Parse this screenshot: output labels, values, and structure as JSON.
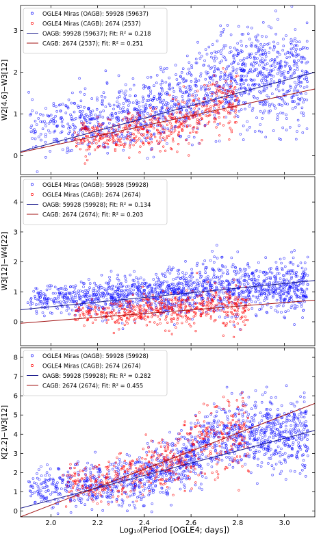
{
  "figure": {
    "xlabel": "Log₁₀(Period [OGLE4; days])",
    "colors": {
      "oagb": "#0000ff",
      "cagb": "#ff0000",
      "oagb_fit": "#1a1a8c",
      "cagb_fit": "#a01010"
    }
  },
  "chart_data": [
    {
      "type": "scatter",
      "xlim": [
        1.87,
        3.13
      ],
      "ylim": [
        -0.45,
        3.6
      ],
      "ylabel": "W2[4.6]−W3[12]",
      "x_ticks": [
        "2.0",
        "2.2",
        "2.4",
        "2.6",
        "2.8",
        "3.0"
      ],
      "y_ticks": [
        "0",
        "1",
        "2",
        "3"
      ],
      "grid": false,
      "legend_position": "top-left",
      "legend": [
        "OGLE4 Miras (OAGB): 59928 (59637)",
        "OGLE4 Miras (CAGB): 2674 (2537)",
        "OAGB: 59928 (59637); Fit: R² = 0.218",
        "CAGB: 2674 (2537); Fit: R² = 0.251"
      ],
      "series": [
        {
          "name": "OGLE4 Miras (OAGB)",
          "count": 59928,
          "count_fit": 59637,
          "x_range": [
            1.9,
            3.1
          ],
          "center": [
            [
              2.0,
              0.7
            ],
            [
              2.2,
              0.8
            ],
            [
              2.4,
              0.95
            ],
            [
              2.55,
              1.2
            ],
            [
              2.65,
              1.6
            ],
            [
              2.75,
              1.9
            ]
          ],
          "spread": 0.5
        },
        {
          "name": "OGLE4 Miras (CAGB)",
          "count": 2674,
          "count_fit": 2537,
          "x_range": [
            2.1,
            2.8
          ],
          "center": [
            [
              2.2,
              0.45
            ],
            [
              2.4,
              0.6
            ],
            [
              2.55,
              0.8
            ],
            [
              2.7,
              1.2
            ]
          ],
          "spread": 0.3
        }
      ],
      "fits": [
        {
          "name": "OAGB",
          "r2": 0.218,
          "x": [
            1.87,
            3.13
          ],
          "y": [
            0.1,
            2.0
          ]
        },
        {
          "name": "CAGB",
          "r2": 0.251,
          "x": [
            1.87,
            3.13
          ],
          "y": [
            0.08,
            1.6
          ]
        }
      ]
    },
    {
      "type": "scatter",
      "xlim": [
        1.87,
        3.13
      ],
      "ylim": [
        -0.8,
        4.85
      ],
      "ylabel": "W3[12]−W4[22]",
      "x_ticks": [
        "2.0",
        "2.2",
        "2.4",
        "2.6",
        "2.8",
        "3.0"
      ],
      "y_ticks": [
        "0",
        "1",
        "2",
        "3",
        "4"
      ],
      "grid": false,
      "legend_position": "top-left",
      "legend": [
        "OGLE4 Miras (OAGB): 59928 (59928)",
        "OGLE4 Miras (CAGB): 2674 (2674)",
        "OAGB: 59928 (59928); Fit: R² = 0.134",
        "CAGB: 2674 (2674); Fit: R² = 0.203"
      ],
      "series": [
        {
          "name": "OGLE4 Miras (OAGB)",
          "count": 59928,
          "count_fit": 59928,
          "x_range": [
            1.9,
            3.1
          ],
          "center": [
            [
              2.0,
              0.75
            ],
            [
              2.3,
              0.85
            ],
            [
              2.6,
              1.05
            ],
            [
              2.75,
              1.15
            ]
          ],
          "spread": 0.4
        },
        {
          "name": "OGLE4 Miras (CAGB)",
          "count": 2674,
          "count_fit": 2674,
          "x_range": [
            2.1,
            2.85
          ],
          "center": [
            [
              2.2,
              0.3
            ],
            [
              2.5,
              0.35
            ],
            [
              2.7,
              0.55
            ]
          ],
          "spread": 0.3
        }
      ],
      "fits": [
        {
          "name": "OAGB",
          "r2": 0.134,
          "x": [
            1.87,
            3.13
          ],
          "y": [
            0.4,
            1.38
          ]
        },
        {
          "name": "CAGB",
          "r2": 0.203,
          "x": [
            1.87,
            3.13
          ],
          "y": [
            -0.05,
            0.72
          ]
        }
      ]
    },
    {
      "type": "scatter",
      "xlim": [
        1.87,
        3.13
      ],
      "ylim": [
        -0.3,
        8.5
      ],
      "ylabel": "K[2.2]−W3[12]",
      "x_ticks": [
        "2.0",
        "2.2",
        "2.4",
        "2.6",
        "2.8",
        "3.0"
      ],
      "y_ticks": [
        "0",
        "1",
        "2",
        "3",
        "4",
        "5",
        "6",
        "7",
        "8"
      ],
      "grid": false,
      "legend_position": "top-left",
      "legend": [
        "OGLE4 Miras (OAGB): 59928 (59928)",
        "OGLE4 Miras (CAGB): 2674 (2674)",
        "OAGB: 59928 (59928); Fit: R² = 0.282",
        "CAGB: 2674 (2674); Fit: R² = 0.455"
      ],
      "series": [
        {
          "name": "OGLE4 Miras (OAGB)",
          "count": 59928,
          "count_fit": 59928,
          "x_range": [
            1.9,
            3.1
          ],
          "center": [
            [
              2.0,
              1.2
            ],
            [
              2.2,
              1.4
            ],
            [
              2.4,
              1.7
            ],
            [
              2.55,
              2.4
            ],
            [
              2.65,
              3.3
            ],
            [
              2.75,
              4.0
            ]
          ],
          "spread": 0.8
        },
        {
          "name": "OGLE4 Miras (CAGB)",
          "count": 2674,
          "count_fit": 2674,
          "x_range": [
            2.05,
            2.85
          ],
          "center": [
            [
              2.2,
              1.5
            ],
            [
              2.4,
              2.0
            ],
            [
              2.55,
              2.8
            ],
            [
              2.7,
              3.8
            ]
          ],
          "spread": 0.8
        }
      ],
      "fits": [
        {
          "name": "OAGB",
          "r2": 0.282,
          "x": [
            1.87,
            3.13
          ],
          "y": [
            0.15,
            4.2
          ]
        },
        {
          "name": "CAGB",
          "r2": 0.455,
          "x": [
            1.87,
            3.13
          ],
          "y": [
            -0.3,
            5.6
          ]
        }
      ]
    }
  ]
}
